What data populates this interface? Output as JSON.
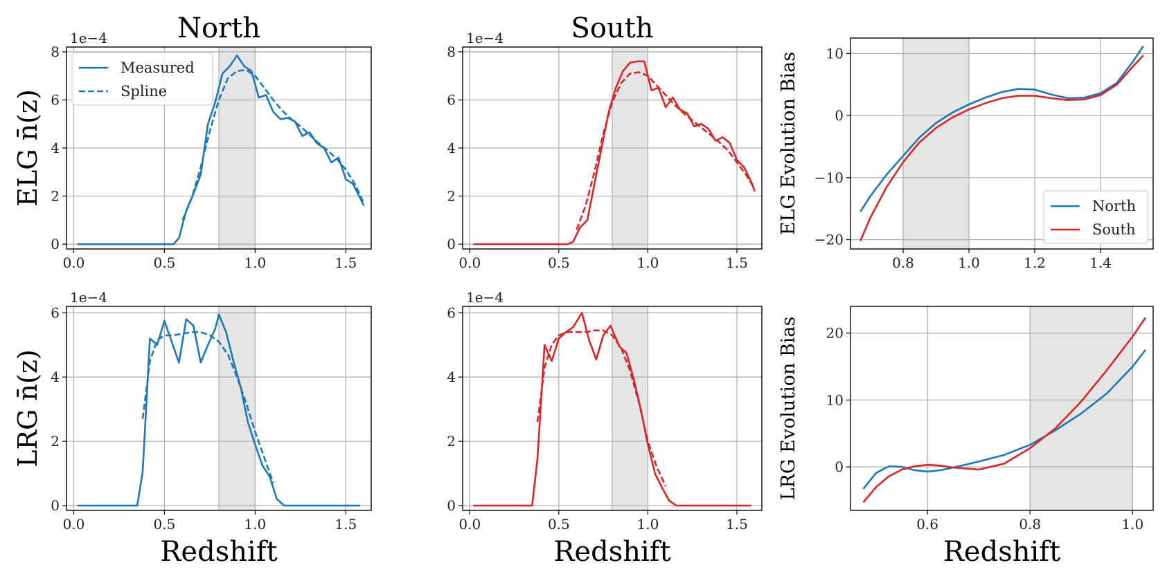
{
  "chart_data": [
    {
      "panel": "elg-north",
      "type": "line",
      "title": "North",
      "xlabel": "",
      "ylabel": "ELG n̄(z)",
      "offset": "1e−4",
      "xlim": [
        -0.04,
        1.64
      ],
      "ylim": [
        -0.2,
        8.2
      ],
      "xticks": [
        0.0,
        0.5,
        1.0,
        1.5
      ],
      "xticklabels": [
        "0.0",
        "0.5",
        "1.0",
        "1.5"
      ],
      "yticks": [
        0,
        2,
        4,
        6,
        8
      ],
      "yticklabels": [
        "0",
        "2",
        "4",
        "6",
        "8"
      ],
      "shade": [
        0.8,
        1.0
      ],
      "color": "#1f77b4",
      "legend": [
        "Measured",
        "Spline"
      ],
      "series": [
        {
          "name": "Measured",
          "style": "solid",
          "x": [
            0.02,
            0.1,
            0.2,
            0.3,
            0.4,
            0.5,
            0.55,
            0.58,
            0.62,
            0.66,
            0.7,
            0.74,
            0.78,
            0.82,
            0.86,
            0.9,
            0.94,
            0.98,
            1.02,
            1.06,
            1.1,
            1.14,
            1.18,
            1.22,
            1.26,
            1.3,
            1.34,
            1.38,
            1.42,
            1.46,
            1.5,
            1.54,
            1.58,
            1.6
          ],
          "y": [
            0,
            0,
            0,
            0,
            0,
            0,
            0,
            0.25,
            1.4,
            2.1,
            2.9,
            5.0,
            5.9,
            7.1,
            7.4,
            7.85,
            7.4,
            7.2,
            6.1,
            6.2,
            5.5,
            5.2,
            5.25,
            5.1,
            4.5,
            4.65,
            4.2,
            4.0,
            3.4,
            3.6,
            2.7,
            2.5,
            1.9,
            1.6
          ]
        },
        {
          "name": "Spline",
          "style": "dashed",
          "x": [
            0.6,
            0.65,
            0.7,
            0.75,
            0.8,
            0.85,
            0.9,
            0.95,
            1.0,
            1.05,
            1.1,
            1.15,
            1.2,
            1.25,
            1.3,
            1.35,
            1.4,
            1.45,
            1.5,
            1.55,
            1.6
          ],
          "y": [
            1.0,
            1.9,
            3.2,
            4.7,
            6.0,
            6.9,
            7.2,
            7.25,
            7.0,
            6.5,
            6.0,
            5.55,
            5.2,
            4.9,
            4.55,
            4.2,
            3.9,
            3.55,
            3.1,
            2.5,
            1.7
          ]
        }
      ]
    },
    {
      "panel": "elg-south",
      "type": "line",
      "title": "South",
      "xlabel": "",
      "ylabel": "",
      "offset": "1e−4",
      "xlim": [
        -0.04,
        1.64
      ],
      "ylim": [
        -0.2,
        8.2
      ],
      "xticks": [
        0.0,
        0.5,
        1.0,
        1.5
      ],
      "xticklabels": [
        "0.0",
        "0.5",
        "1.0",
        "1.5"
      ],
      "yticks": [
        0,
        2,
        4,
        6,
        8
      ],
      "yticklabels": [
        "0",
        "2",
        "4",
        "6",
        "8"
      ],
      "shade": [
        0.8,
        1.0
      ],
      "color": "#d62728",
      "series": [
        {
          "name": "Measured",
          "style": "solid",
          "x": [
            0.02,
            0.1,
            0.2,
            0.3,
            0.4,
            0.5,
            0.55,
            0.58,
            0.62,
            0.66,
            0.7,
            0.74,
            0.78,
            0.82,
            0.86,
            0.9,
            0.94,
            0.98,
            1.02,
            1.06,
            1.1,
            1.14,
            1.18,
            1.22,
            1.26,
            1.3,
            1.34,
            1.38,
            1.42,
            1.46,
            1.5,
            1.54,
            1.58,
            1.6
          ],
          "y": [
            0,
            0,
            0,
            0,
            0,
            0,
            0,
            0.1,
            0.7,
            1.0,
            2.5,
            4.0,
            5.5,
            6.5,
            7.2,
            7.55,
            7.6,
            7.6,
            6.4,
            6.5,
            5.7,
            6.1,
            5.6,
            5.45,
            4.9,
            5.0,
            4.8,
            4.3,
            4.45,
            4.2,
            3.5,
            3.2,
            2.6,
            2.2
          ]
        },
        {
          "name": "Spline",
          "style": "dashed",
          "x": [
            0.6,
            0.65,
            0.7,
            0.75,
            0.8,
            0.85,
            0.9,
            0.95,
            1.0,
            1.05,
            1.1,
            1.15,
            1.2,
            1.25,
            1.3,
            1.35,
            1.4,
            1.45,
            1.5,
            1.55,
            1.6
          ],
          "y": [
            0.6,
            1.6,
            3.0,
            4.6,
            5.9,
            6.7,
            7.1,
            7.15,
            7.0,
            6.6,
            6.2,
            5.8,
            5.45,
            5.15,
            4.85,
            4.55,
            4.25,
            3.9,
            3.4,
            2.9,
            2.3
          ]
        }
      ]
    },
    {
      "panel": "elg-bias",
      "type": "line",
      "title": "",
      "xlabel": "",
      "ylabel": "ELG Evolution Bias",
      "xlim": [
        0.64,
        1.56
      ],
      "ylim": [
        -21.5,
        12.5
      ],
      "xticks": [
        0.8,
        1.0,
        1.2,
        1.4
      ],
      "xticklabels": [
        "0.8",
        "1.0",
        "1.2",
        "1.4"
      ],
      "yticks": [
        -20,
        -10,
        0,
        10
      ],
      "yticklabels": [
        "−20",
        "−10",
        "0",
        "10"
      ],
      "shade": [
        0.8,
        1.0
      ],
      "legend": [
        "North",
        "South"
      ],
      "series": [
        {
          "name": "North",
          "color": "#1f77b4",
          "style": "solid",
          "x": [
            0.67,
            0.7,
            0.75,
            0.8,
            0.85,
            0.9,
            0.95,
            1.0,
            1.05,
            1.1,
            1.15,
            1.2,
            1.25,
            1.3,
            1.35,
            1.4,
            1.45,
            1.5,
            1.53
          ],
          "y": [
            -15.5,
            -13.0,
            -9.5,
            -6.5,
            -3.5,
            -1.2,
            0.5,
            1.8,
            2.9,
            3.8,
            4.3,
            4.2,
            3.4,
            2.8,
            2.9,
            3.6,
            5.3,
            8.8,
            11.2
          ]
        },
        {
          "name": "South",
          "color": "#d62728",
          "style": "solid",
          "x": [
            0.67,
            0.7,
            0.75,
            0.8,
            0.85,
            0.9,
            0.95,
            1.0,
            1.05,
            1.1,
            1.15,
            1.2,
            1.25,
            1.3,
            1.35,
            1.4,
            1.45,
            1.5,
            1.53
          ],
          "y": [
            -20.2,
            -16.5,
            -11.5,
            -7.5,
            -4.3,
            -2.0,
            -0.3,
            1.0,
            2.0,
            2.8,
            3.2,
            3.2,
            2.8,
            2.5,
            2.6,
            3.3,
            5.0,
            8.0,
            9.7
          ]
        }
      ]
    },
    {
      "panel": "lrg-north",
      "type": "line",
      "title": "",
      "xlabel": "Redshift",
      "ylabel": "LRG n̄(z)",
      "offset": "1e−4",
      "xlim": [
        -0.04,
        1.64
      ],
      "ylim": [
        -0.15,
        6.2
      ],
      "xticks": [
        0.0,
        0.5,
        1.0,
        1.5
      ],
      "xticklabels": [
        "0.0",
        "0.5",
        "1.0",
        "1.5"
      ],
      "yticks": [
        0,
        2,
        4,
        6
      ],
      "yticklabels": [
        "0",
        "2",
        "4",
        "6"
      ],
      "shade": [
        0.8,
        1.0
      ],
      "color": "#1f77b4",
      "series": [
        {
          "name": "Measured",
          "style": "solid",
          "x": [
            0.02,
            0.1,
            0.2,
            0.3,
            0.35,
            0.38,
            0.42,
            0.46,
            0.5,
            0.54,
            0.58,
            0.62,
            0.66,
            0.7,
            0.74,
            0.78,
            0.8,
            0.84,
            0.88,
            0.92,
            0.96,
            1.0,
            1.04,
            1.08,
            1.12,
            1.16,
            1.2,
            1.3,
            1.4,
            1.5,
            1.58
          ],
          "y": [
            0,
            0,
            0,
            0,
            0,
            1.05,
            5.2,
            5.0,
            5.75,
            5.1,
            4.45,
            5.8,
            5.6,
            4.45,
            5.0,
            5.5,
            5.95,
            5.4,
            4.5,
            3.7,
            2.6,
            1.9,
            1.25,
            0.9,
            0.2,
            0,
            0,
            0,
            0,
            0,
            0
          ]
        },
        {
          "name": "Spline",
          "style": "dashed",
          "x": [
            0.38,
            0.42,
            0.46,
            0.5,
            0.55,
            0.6,
            0.65,
            0.7,
            0.75,
            0.8,
            0.85,
            0.9,
            0.95,
            1.0,
            1.05,
            1.1
          ],
          "y": [
            2.7,
            4.5,
            5.15,
            5.3,
            5.3,
            5.35,
            5.4,
            5.4,
            5.3,
            5.1,
            4.7,
            4.0,
            3.2,
            2.3,
            1.5,
            0.7
          ]
        }
      ]
    },
    {
      "panel": "lrg-south",
      "type": "line",
      "title": "",
      "xlabel": "Redshift",
      "ylabel": "",
      "offset": "1e−4",
      "xlim": [
        -0.04,
        1.64
      ],
      "ylim": [
        -0.15,
        6.2
      ],
      "xticks": [
        0.0,
        0.5,
        1.0,
        1.5
      ],
      "xticklabels": [
        "0.0",
        "0.5",
        "1.0",
        "1.5"
      ],
      "yticks": [
        0,
        2,
        4,
        6
      ],
      "yticklabels": [
        "0",
        "2",
        "4",
        "6"
      ],
      "shade": [
        0.8,
        1.0
      ],
      "color": "#d62728",
      "series": [
        {
          "name": "Measured",
          "style": "solid",
          "x": [
            0.02,
            0.1,
            0.2,
            0.3,
            0.35,
            0.38,
            0.42,
            0.46,
            0.5,
            0.54,
            0.58,
            0.63,
            0.67,
            0.71,
            0.75,
            0.79,
            0.84,
            0.88,
            0.92,
            0.96,
            1.0,
            1.04,
            1.08,
            1.12,
            1.16,
            1.2,
            1.3,
            1.4,
            1.5,
            1.58
          ],
          "y": [
            0,
            0,
            0,
            0,
            0,
            1.45,
            5.0,
            4.5,
            5.2,
            5.4,
            5.55,
            6.0,
            5.15,
            4.55,
            5.3,
            5.6,
            4.95,
            4.75,
            3.95,
            3.0,
            1.9,
            1.0,
            0.55,
            0.15,
            0,
            0,
            0,
            0,
            0,
            0
          ]
        },
        {
          "name": "Spline",
          "style": "dashed",
          "x": [
            0.38,
            0.42,
            0.46,
            0.5,
            0.55,
            0.6,
            0.65,
            0.7,
            0.75,
            0.8,
            0.85,
            0.9,
            0.95,
            1.0,
            1.05,
            1.1
          ],
          "y": [
            2.6,
            4.3,
            5.0,
            5.3,
            5.4,
            5.4,
            5.4,
            5.45,
            5.45,
            5.3,
            4.9,
            4.2,
            3.2,
            2.0,
            1.2,
            0.6
          ]
        }
      ]
    },
    {
      "panel": "lrg-bias",
      "type": "line",
      "title": "",
      "xlabel": "Redshift",
      "ylabel": "LRG Evolution Bias",
      "xlim": [
        0.45,
        1.04
      ],
      "ylim": [
        -6.5,
        24
      ],
      "xticks": [
        0.6,
        0.8,
        1.0
      ],
      "xticklabels": [
        "0.6",
        "0.8",
        "1.0"
      ],
      "yticks": [
        0,
        10,
        20
      ],
      "yticklabels": [
        "0",
        "10",
        "20"
      ],
      "shade": [
        0.8,
        1.0
      ],
      "series": [
        {
          "name": "North",
          "color": "#1f77b4",
          "style": "solid",
          "x": [
            0.475,
            0.5,
            0.525,
            0.55,
            0.575,
            0.6,
            0.625,
            0.65,
            0.7,
            0.75,
            0.8,
            0.85,
            0.9,
            0.95,
            1.0,
            1.025
          ],
          "y": [
            -3.3,
            -0.9,
            0.1,
            0.0,
            -0.5,
            -0.7,
            -0.5,
            -0.1,
            0.8,
            1.8,
            3.3,
            5.5,
            8.0,
            11.0,
            15.0,
            17.5
          ]
        },
        {
          "name": "South",
          "color": "#d62728",
          "style": "solid",
          "x": [
            0.475,
            0.5,
            0.525,
            0.55,
            0.575,
            0.6,
            0.625,
            0.65,
            0.7,
            0.75,
            0.8,
            0.85,
            0.9,
            0.95,
            1.0,
            1.025
          ],
          "y": [
            -5.3,
            -3.0,
            -1.4,
            -0.4,
            0.1,
            0.3,
            0.2,
            -0.1,
            -0.4,
            0.5,
            2.8,
            5.8,
            9.8,
            14.5,
            19.5,
            22.3
          ]
        }
      ]
    }
  ],
  "colors": {
    "north": "#1f77b4",
    "south": "#d62728",
    "shade": "#e5e5e5",
    "grid": "#b0b0b0"
  }
}
